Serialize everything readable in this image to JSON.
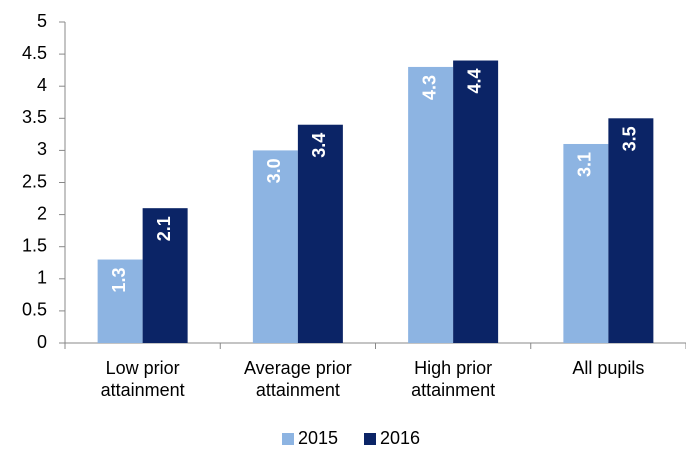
{
  "chart_data": {
    "type": "bar",
    "categories": [
      "Low prior attainment",
      "Average prior attainment",
      "High prior attainment",
      "All pupils"
    ],
    "series": [
      {
        "name": "2015",
        "color": "#8db4e2",
        "values": [
          1.3,
          3.0,
          4.3,
          3.1
        ],
        "value_labels": [
          "1.3",
          "3.0",
          "4.3",
          "3.1"
        ]
      },
      {
        "name": "2016",
        "color": "#0b2466",
        "values": [
          2.1,
          3.4,
          4.4,
          3.5
        ],
        "value_labels": [
          "2.1",
          "3.4",
          "4.4",
          "3.5"
        ]
      }
    ],
    "ylim": [
      0,
      5
    ],
    "yticks": [
      0,
      0.5,
      1,
      1.5,
      2,
      2.5,
      3,
      3.5,
      4,
      4.5,
      5
    ],
    "grid": false,
    "legend": "bottom"
  }
}
